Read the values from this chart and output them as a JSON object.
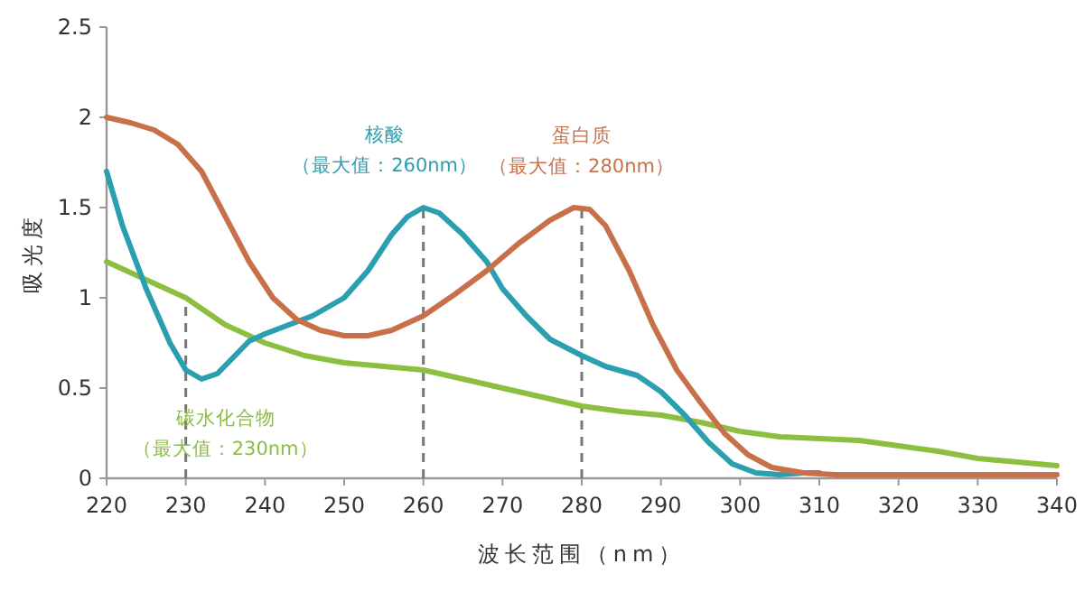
{
  "chart_data": {
    "type": "line",
    "xlabel": "波长范围（nm）",
    "ylabel": "吸光度",
    "x": [
      220,
      225,
      230,
      235,
      240,
      245,
      250,
      255,
      260,
      265,
      270,
      275,
      280,
      285,
      290,
      295,
      300,
      305,
      310,
      315,
      320,
      325,
      330,
      335,
      340
    ],
    "series": [
      {
        "color": "#8cbf3f",
        "values": [
          1.2,
          1.1,
          1.0,
          0.85,
          0.75,
          0.68,
          0.64,
          0.62,
          0.6,
          0.55,
          0.5,
          0.45,
          0.4,
          0.37,
          0.35,
          0.31,
          0.26,
          0.23,
          0.22,
          0.21,
          0.18,
          0.15,
          0.11,
          0.09,
          0.07
        ]
      },
      {
        "color": "#2a9fb0",
        "x": [
          220,
          222,
          225,
          228,
          230,
          232,
          234,
          236,
          238,
          240,
          243,
          246,
          250,
          253,
          256,
          258,
          260,
          262,
          265,
          268,
          270,
          273,
          276,
          280,
          283,
          287,
          290,
          293,
          296,
          299,
          302,
          305,
          308,
          310
        ],
        "values": [
          1.7,
          1.4,
          1.05,
          0.75,
          0.6,
          0.55,
          0.58,
          0.67,
          0.76,
          0.8,
          0.85,
          0.9,
          1.0,
          1.15,
          1.35,
          1.45,
          1.5,
          1.47,
          1.35,
          1.2,
          1.05,
          0.9,
          0.77,
          0.68,
          0.62,
          0.57,
          0.48,
          0.35,
          0.2,
          0.08,
          0.03,
          0.02,
          0.03,
          0.03
        ]
      },
      {
        "color": "#c8704a",
        "x": [
          220,
          223,
          226,
          229,
          232,
          235,
          238,
          241,
          244,
          247,
          250,
          253,
          256,
          260,
          264,
          268,
          272,
          276,
          279,
          281,
          283,
          286,
          289,
          292,
          295,
          298,
          301,
          304,
          308,
          312,
          320,
          330,
          340
        ],
        "values": [
          2.0,
          1.97,
          1.93,
          1.85,
          1.7,
          1.45,
          1.2,
          1.0,
          0.88,
          0.82,
          0.79,
          0.79,
          0.82,
          0.9,
          1.02,
          1.15,
          1.3,
          1.43,
          1.5,
          1.49,
          1.4,
          1.15,
          0.85,
          0.6,
          0.42,
          0.25,
          0.13,
          0.06,
          0.03,
          0.02,
          0.02,
          0.02,
          0.02
        ]
      }
    ],
    "annotations": [
      "碳水化合物",
      "（最大值：230nm）",
      "核酸",
      "（最大值：260nm）",
      "蛋白质",
      "（最大值：280nm）"
    ],
    "ref_lines": [
      {
        "axis": "x",
        "value": 230,
        "line_style": "dashed",
        "color": "#777777"
      },
      {
        "axis": "x",
        "value": 260,
        "line_style": "dashed",
        "color": "#777777"
      },
      {
        "axis": "x",
        "value": 280,
        "line_style": "dashed",
        "color": "#777777"
      }
    ],
    "xlim": [
      220,
      340
    ],
    "xticks": [
      220,
      230,
      240,
      250,
      260,
      270,
      280,
      290,
      300,
      310,
      320,
      330,
      340
    ],
    "ylim": [
      0,
      2.5
    ],
    "yticks": [
      0,
      0.5,
      1,
      1.5,
      2,
      2.5
    ],
    "grid": false,
    "marker": "none",
    "line_style": "solid"
  }
}
